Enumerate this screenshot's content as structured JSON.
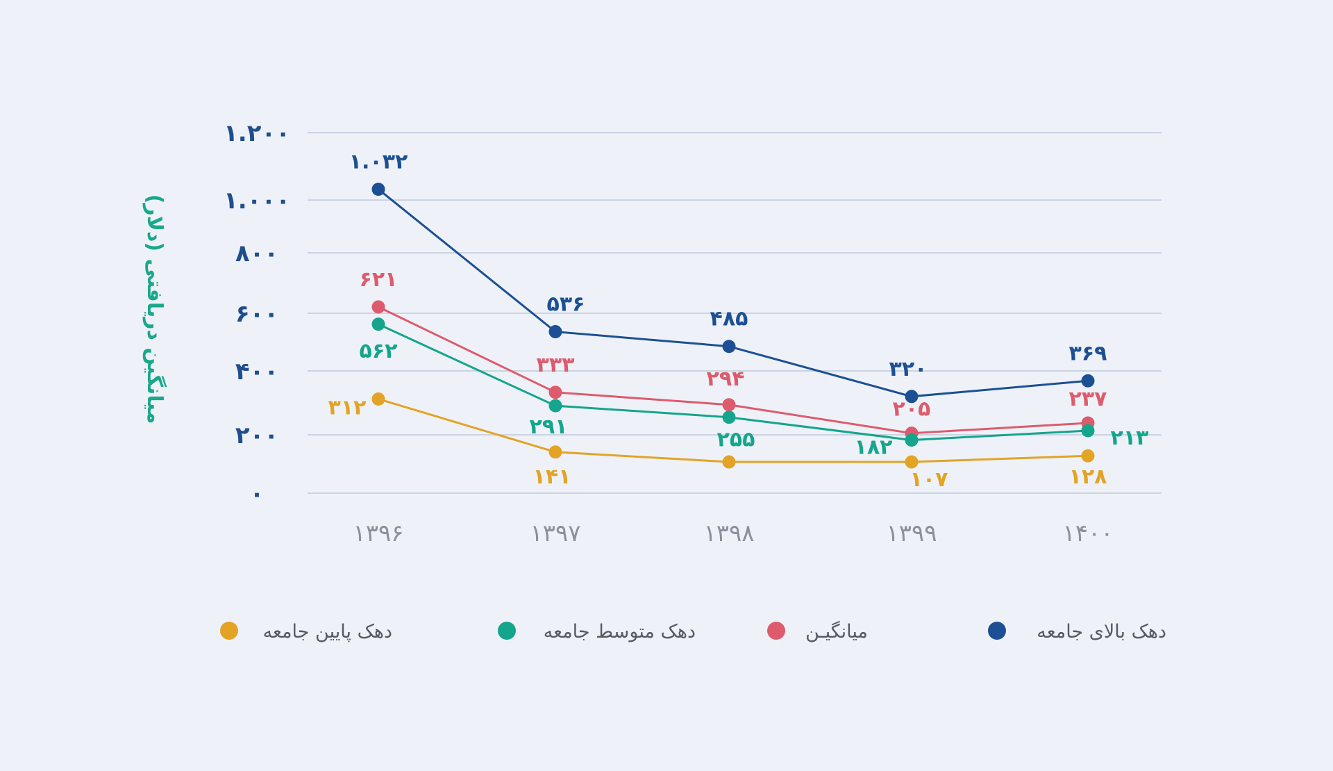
{
  "chart_data": {
    "type": "line",
    "title": "",
    "xlabel": "",
    "ylabel": "میانگین دریافتی (دلار)",
    "x": [
      "۱۳۹۶",
      "۱۳۹۷",
      "۱۳۹۸",
      "۱۳۹۹",
      "۱۴۰۰"
    ],
    "yticks": [
      {
        "value": 0,
        "label": "۰"
      },
      {
        "value": 200,
        "label": "۲۰۰"
      },
      {
        "value": 400,
        "label": "۴۰۰"
      },
      {
        "value": 600,
        "label": "۶۰۰"
      },
      {
        "value": 800,
        "label": "۸۰۰"
      },
      {
        "value": 1000,
        "label": "۱.۰۰۰"
      },
      {
        "value": 1200,
        "label": "۱.۲۰۰"
      }
    ],
    "ylim": [
      0,
      1200
    ],
    "grid": true,
    "legend_position": "bottom",
    "series": [
      {
        "name": "دهک بالای جامعه",
        "color": "#1c4f94",
        "values": [
          1032,
          536,
          485,
          320,
          369
        ],
        "labels": [
          "۱.۰۳۲",
          "۵۳۶",
          "۴۸۵",
          "۳۲۰",
          "۳۶۹"
        ]
      },
      {
        "name": "میانگیـن",
        "color": "#dd5b6c",
        "values": [
          621,
          333,
          294,
          205,
          237
        ],
        "labels": [
          "۶۲۱",
          "۳۳۳",
          "۲۹۴",
          "۲۰۵",
          "۲۳۷"
        ]
      },
      {
        "name": "دهک متوسط جامعه",
        "color": "#14a58c",
        "values": [
          562,
          291,
          255,
          182,
          213
        ],
        "labels": [
          "۵۶۲",
          "۲۹۱",
          "۲۵۵",
          "۱۸۲",
          "۲۱۳"
        ]
      },
      {
        "name": "دهک پایین جامعه",
        "color": "#e3a325",
        "values": [
          312,
          141,
          107,
          107,
          128
        ],
        "labels": [
          "۳۱۲",
          "۱۴۱",
          "",
          "۱۰۷",
          "۱۲۸"
        ]
      }
    ]
  }
}
